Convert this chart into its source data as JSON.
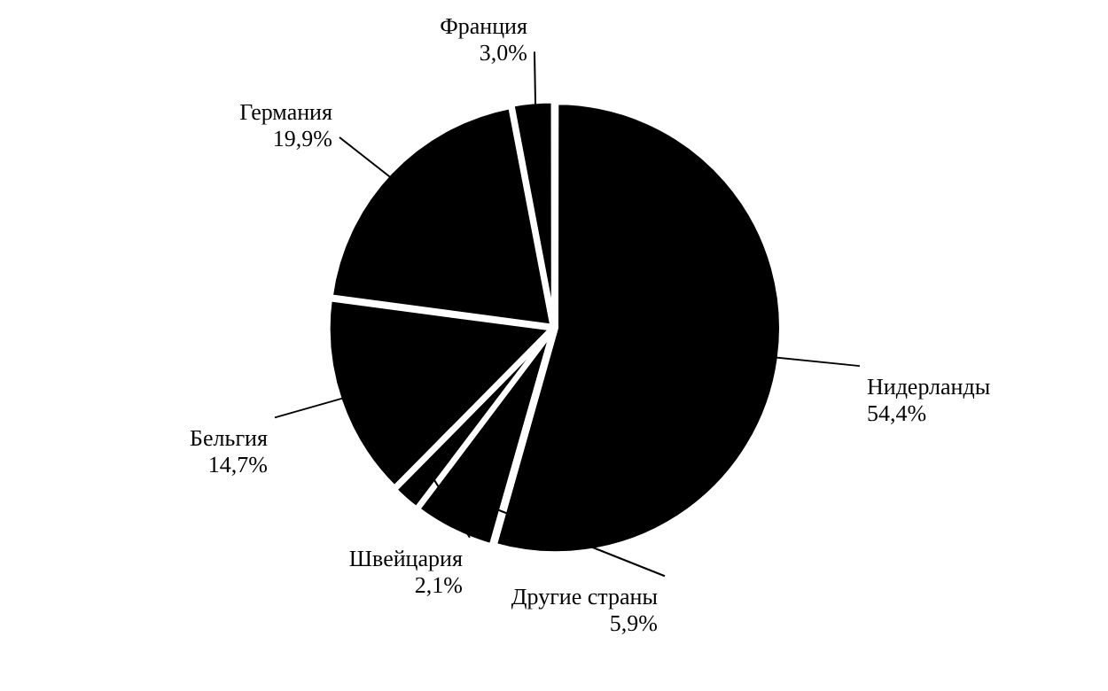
{
  "chart_data": {
    "type": "pie",
    "categories": [
      "Нидерланды",
      "Другие страны",
      "Швейцария",
      "Бельгия",
      "Германия",
      "Франция"
    ],
    "values": [
      54.4,
      5.9,
      2.1,
      14.7,
      19.9,
      3.0
    ],
    "value_labels": [
      "54,4%",
      "5,9%",
      "2,1%",
      "14,7%",
      "19,9%",
      "3,0%"
    ],
    "colors": [
      "#000000",
      "#000000",
      "#000000",
      "#000000",
      "#000000",
      "#000000"
    ],
    "legend": false
  }
}
